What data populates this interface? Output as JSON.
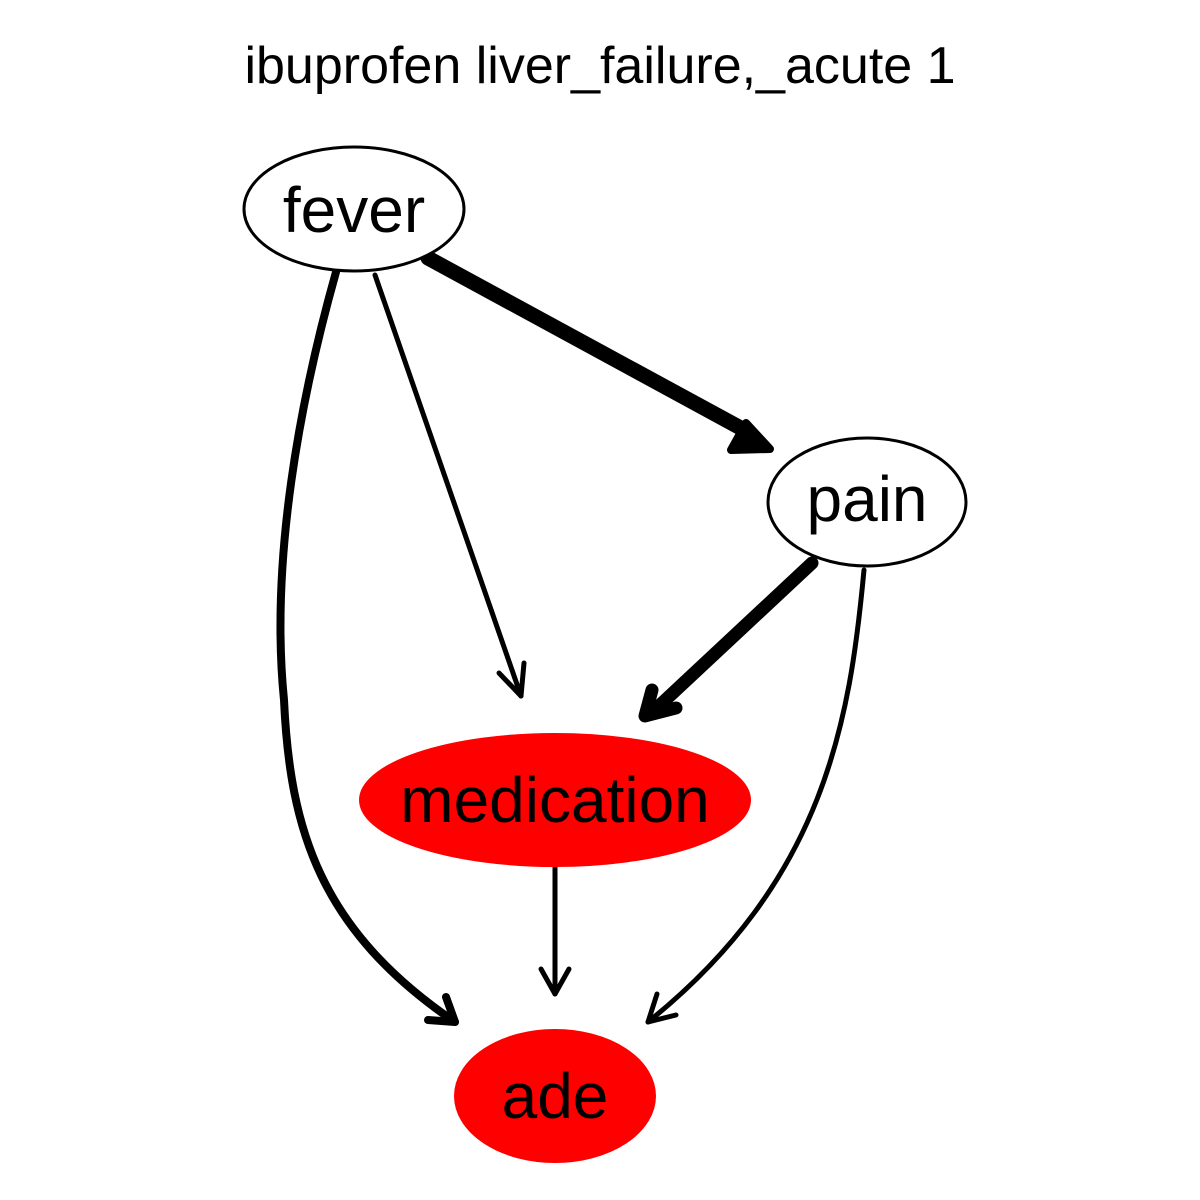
{
  "title": "ibuprofen liver_failure,_acute 1",
  "colors": {
    "highlight": "#ff0000",
    "plain_fill": "#ffffff",
    "stroke": "#000000"
  },
  "nodes": {
    "fever": {
      "label": "fever",
      "highlighted": false
    },
    "pain": {
      "label": "pain",
      "highlighted": false
    },
    "medication": {
      "label": "medication",
      "highlighted": true
    },
    "ade": {
      "label": "ade",
      "highlighted": true
    }
  },
  "edges": [
    {
      "from": "fever",
      "to": "pain",
      "weight": "heavy"
    },
    {
      "from": "fever",
      "to": "medication",
      "weight": "light"
    },
    {
      "from": "fever",
      "to": "ade",
      "weight": "medium"
    },
    {
      "from": "pain",
      "to": "medication",
      "weight": "heavy"
    },
    {
      "from": "pain",
      "to": "ade",
      "weight": "light"
    },
    {
      "from": "medication",
      "to": "ade",
      "weight": "light"
    }
  ]
}
